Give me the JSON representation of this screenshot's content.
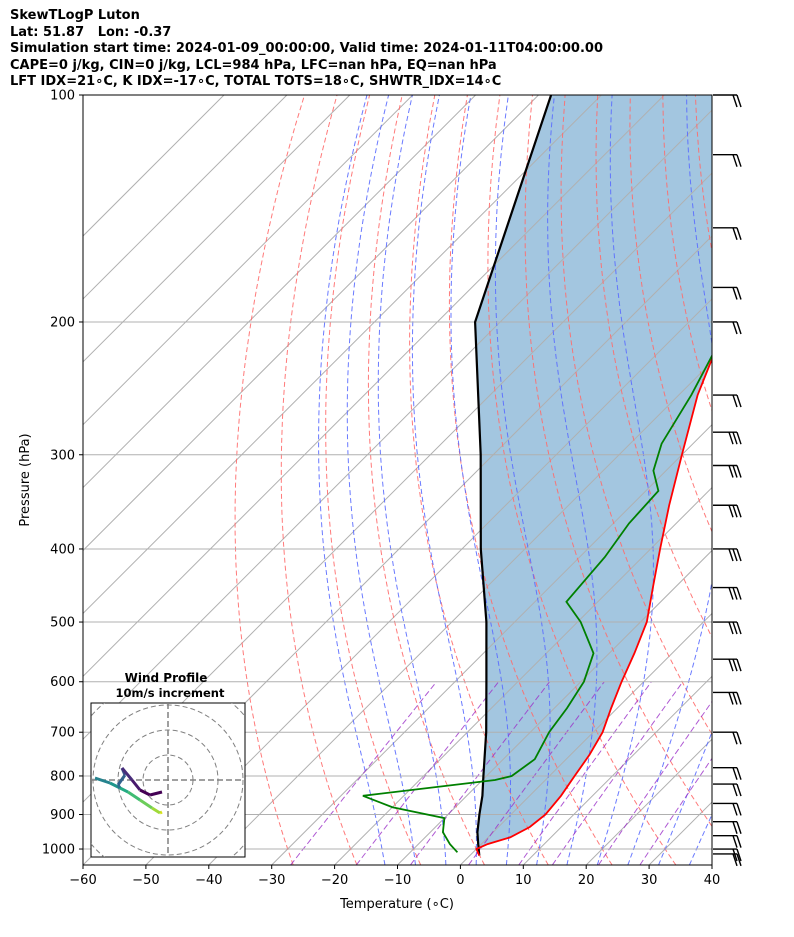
{
  "header": {
    "line1": "SkewTLogP Luton",
    "line2": "Lat: 51.87   Lon: -0.37",
    "line3": "Simulation start time: 2024-01-09_00:00:00, Valid time: 2024-01-11T04:00:00.00",
    "line4": "CAPE=0 j/kg, CIN=0 j/kg, LCL=984 hPa, LFC=nan hPa, EQ=nan hPa",
    "line5": "LFT IDX=21∘C, K IDX=-17∘C, TOTAL TOTS=18∘C, SHWTR_IDX=14∘C"
  },
  "chart_data": {
    "type": "line",
    "subtype": "skew-T log-P",
    "xlabel": "Temperature (∘C)",
    "ylabel": "Pressure (hPa)",
    "xlim": [
      -60,
      40
    ],
    "ylim": [
      1050,
      100
    ],
    "y_scale": "log",
    "x_ticks": [
      "−60",
      "−50",
      "−40",
      "−30",
      "−20",
      "−10",
      "0",
      "10",
      "20",
      "30",
      "40"
    ],
    "y_ticks": [
      "100",
      "200",
      "300",
      "400",
      "500",
      "600",
      "700",
      "800",
      "900",
      "1000"
    ],
    "grid": true,
    "colors": {
      "temperature": "#ff0000",
      "dewpoint": "#008000",
      "parcel": "#000000",
      "shading": "#a3c6e0",
      "dry_adiabat": "#ff6b6b",
      "moist_adiabat": "#5a6bff",
      "mixing_ratio": "#9b30c8",
      "isotherm": "#b0b0b0"
    },
    "series": [
      {
        "name": "Temperature",
        "points": [
          [
            1020,
            1.5
          ],
          [
            1000,
            0.0
          ],
          [
            985,
            1.0
          ],
          [
            965,
            3.5
          ],
          [
            935,
            5.0
          ],
          [
            900,
            5.5
          ],
          [
            850,
            5.0
          ],
          [
            800,
            4.0
          ],
          [
            750,
            3.0
          ],
          [
            700,
            1.5
          ],
          [
            650,
            -1.0
          ],
          [
            600,
            -3.5
          ],
          [
            550,
            -6.0
          ],
          [
            500,
            -9.0
          ],
          [
            450,
            -13.5
          ],
          [
            400,
            -18.5
          ],
          [
            350,
            -24.0
          ],
          [
            300,
            -30.0
          ],
          [
            250,
            -37.0
          ],
          [
            200,
            -44.0
          ],
          [
            150,
            -53.0
          ],
          [
            120,
            -59.0
          ],
          [
            100,
            -63.0
          ]
        ]
      },
      {
        "name": "Dewpoint",
        "points": [
          [
            1010,
            -2.5
          ],
          [
            985,
            -5.0
          ],
          [
            950,
            -8.0
          ],
          [
            910,
            -10.0
          ],
          [
            880,
            -20.0
          ],
          [
            850,
            -26.5
          ],
          [
            810,
            -8.0
          ],
          [
            800,
            -6.0
          ],
          [
            760,
            -5.0
          ],
          [
            700,
            -7.0
          ],
          [
            650,
            -8.0
          ],
          [
            600,
            -9.5
          ],
          [
            550,
            -12.5
          ],
          [
            500,
            -19.5
          ],
          [
            470,
            -25.0
          ],
          [
            410,
            -26.0
          ],
          [
            370,
            -27.5
          ],
          [
            335,
            -28.0
          ],
          [
            315,
            -32.0
          ],
          [
            290,
            -35.0
          ],
          [
            250,
            -38.0
          ],
          [
            200,
            -43.5
          ],
          [
            170,
            -47.0
          ],
          [
            145,
            -50.0
          ],
          [
            100,
            -48.0
          ]
        ]
      },
      {
        "name": "Parcel profile",
        "points": [
          [
            1020,
            1.5
          ],
          [
            985,
            -0.5
          ],
          [
            950,
            -2.5
          ],
          [
            900,
            -5.0
          ],
          [
            850,
            -7.5
          ],
          [
            800,
            -10.5
          ],
          [
            700,
            -17.0
          ],
          [
            600,
            -25.0
          ],
          [
            500,
            -34.5
          ],
          [
            400,
            -47.0
          ],
          [
            300,
            -62.0
          ],
          [
            200,
            -84.0
          ],
          [
            100,
            -108.0
          ]
        ]
      }
    ],
    "wind_barbs": {
      "pressures": [
        "100",
        "120",
        "150",
        "180",
        "200",
        "250",
        "280",
        "310",
        "350",
        "400",
        "450",
        "500",
        "560",
        "620",
        "700",
        "780",
        "820",
        "870",
        "920",
        "960",
        "1000",
        "1015"
      ]
    },
    "inset": {
      "title": "Wind Profile",
      "subtitle": "10m/s increment",
      "grid": true
    }
  }
}
